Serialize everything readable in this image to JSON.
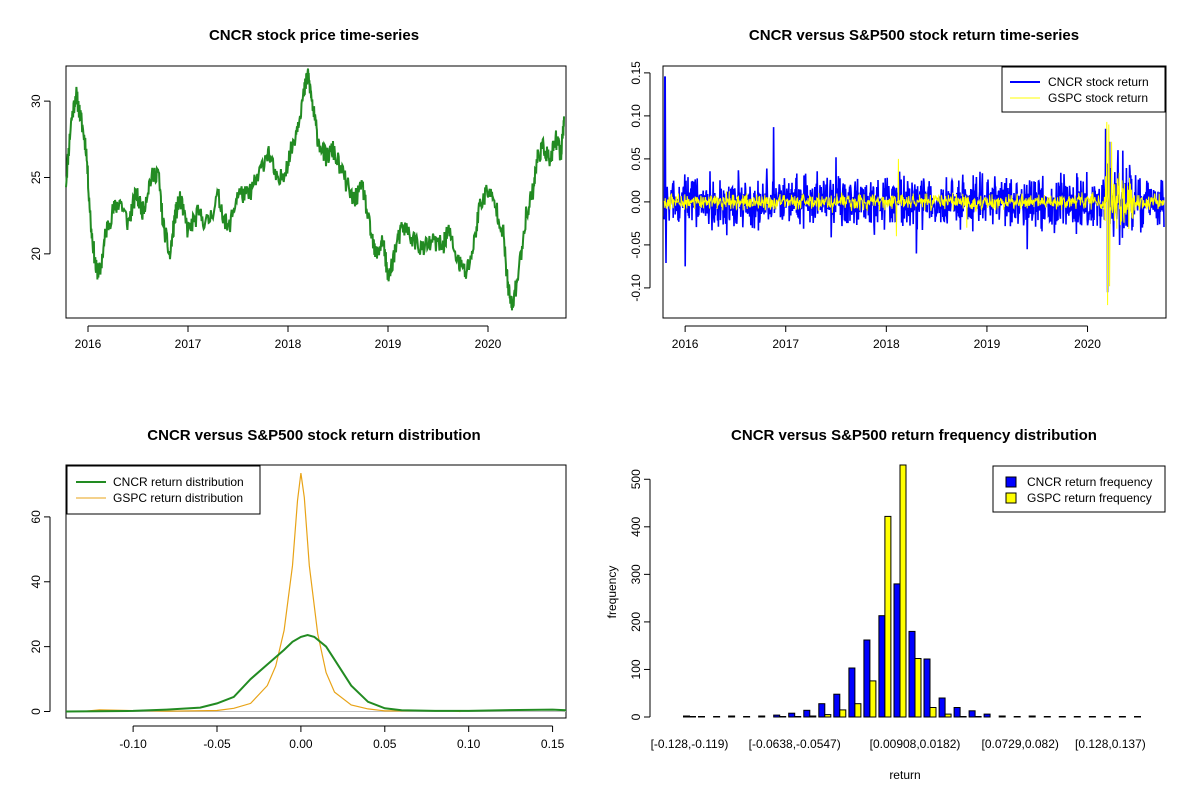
{
  "colors": {
    "green": "#228b22",
    "blue": "#0000ff",
    "yellow": "#ffff00",
    "orange": "#e8a317",
    "gray": "#bebebe"
  },
  "chart_data": [
    {
      "id": "price",
      "type": "line",
      "title": "CNCR stock price time-series",
      "xlabel": "",
      "ylabel": "",
      "xlim": [
        2015.78,
        2020.78
      ],
      "ylim": [
        15.8,
        32.3
      ],
      "xticks": [
        2016,
        2017,
        2018,
        2019,
        2020
      ],
      "xtick_labels": [
        "2016",
        "2017",
        "2018",
        "2019",
        "2020"
      ],
      "yticks": [
        20,
        25,
        30
      ],
      "ytick_labels": [
        "20",
        "25",
        "30"
      ],
      "series": [
        {
          "name": "CNCR stock price",
          "color": "#228b22",
          "x": [
            2015.78,
            2015.83,
            2015.88,
            2015.93,
            2015.98,
            2016.03,
            2016.08,
            2016.12,
            2016.18,
            2016.25,
            2016.32,
            2016.4,
            2016.48,
            2016.55,
            2016.62,
            2016.7,
            2016.75,
            2016.82,
            2016.87,
            2016.92,
            2017.0,
            2017.1,
            2017.2,
            2017.3,
            2017.4,
            2017.5,
            2017.6,
            2017.7,
            2017.8,
            2017.9,
            2018.0,
            2018.08,
            2018.15,
            2018.2,
            2018.25,
            2018.3,
            2018.38,
            2018.45,
            2018.55,
            2018.65,
            2018.75,
            2018.82,
            2018.88,
            2018.95,
            2019.0,
            2019.08,
            2019.15,
            2019.25,
            2019.35,
            2019.45,
            2019.55,
            2019.6,
            2019.7,
            2019.78,
            2019.85,
            2019.92,
            2020.0,
            2020.08,
            2020.15,
            2020.2,
            2020.24,
            2020.3,
            2020.38,
            2020.45,
            2020.5,
            2020.56,
            2020.62,
            2020.68,
            2020.73,
            2020.76
          ],
          "y": [
            24.7,
            28.6,
            30.5,
            28.8,
            27.0,
            21.8,
            19.0,
            18.8,
            21.5,
            22.8,
            23.5,
            22.0,
            23.9,
            22.8,
            24.8,
            25.5,
            22.0,
            19.8,
            22.5,
            23.6,
            21.5,
            22.6,
            22.0,
            23.8,
            21.5,
            24.0,
            23.8,
            25.0,
            26.8,
            24.5,
            26.0,
            28.0,
            30.2,
            31.8,
            29.5,
            27.5,
            26.3,
            26.8,
            25.2,
            23.5,
            24.3,
            21.6,
            19.8,
            21.0,
            18.3,
            20.5,
            21.8,
            21.0,
            20.3,
            20.8,
            20.5,
            21.6,
            19.5,
            18.7,
            20.3,
            23.3,
            24.2,
            23.0,
            21.5,
            17.8,
            16.5,
            18.5,
            22.5,
            24.2,
            26.5,
            27.0,
            26.0,
            27.5,
            26.5,
            29.0
          ]
        }
      ]
    },
    {
      "id": "returns",
      "type": "line",
      "title": "CNCR versus S&P500 stock return time-series",
      "xlabel": "",
      "ylabel": "",
      "xlim": [
        2015.78,
        2020.78
      ],
      "ylim": [
        -0.135,
        0.158
      ],
      "xticks": [
        2016,
        2017,
        2018,
        2019,
        2020
      ],
      "xtick_labels": [
        "2016",
        "2017",
        "2018",
        "2019",
        "2020"
      ],
      "yticks": [
        -0.1,
        -0.05,
        0.0,
        0.05,
        0.1,
        0.15
      ],
      "ytick_labels": [
        "-0.10",
        "-0.05",
        "0.00",
        "0.05",
        "0.10",
        "0.15"
      ],
      "legend_position": "top-right",
      "legend": [
        "CNCR stock return",
        "GSPC stock return"
      ],
      "series": [
        {
          "name": "CNCR stock return",
          "color": "#0000ff",
          "amplitude": 0.022,
          "spikes": [
            [
              2015.8,
              0.145
            ],
            [
              2015.81,
              -0.071
            ],
            [
              2016.0,
              -0.075
            ],
            [
              2016.88,
              0.087
            ],
            [
              2017.5,
              0.052
            ],
            [
              2018.3,
              -0.06
            ],
            [
              2019.4,
              -0.055
            ],
            [
              2020.18,
              0.085
            ],
            [
              2020.2,
              -0.105
            ],
            [
              2020.22,
              0.07
            ]
          ]
        },
        {
          "name": "GSPC stock return",
          "color": "#ffff00",
          "amplitude": 0.007,
          "spikes": [
            [
              2018.1,
              -0.04
            ],
            [
              2018.12,
              0.05
            ],
            [
              2018.8,
              -0.03
            ],
            [
              2020.19,
              0.093
            ],
            [
              2020.2,
              -0.12
            ],
            [
              2020.21,
              0.09
            ],
            [
              2020.22,
              -0.098
            ],
            [
              2020.24,
              0.07
            ]
          ]
        }
      ]
    },
    {
      "id": "density",
      "type": "line",
      "title": "CNCR versus S&P500 stock return distribution",
      "xlabel": "",
      "ylabel": "",
      "xlim": [
        -0.14,
        0.158
      ],
      "ylim": [
        -2,
        76
      ],
      "xticks": [
        -0.1,
        -0.05,
        0.0,
        0.05,
        0.1,
        0.15
      ],
      "xtick_labels": [
        "-0.10",
        "-0.05",
        "0.00",
        "0.05",
        "0.10",
        "0.15"
      ],
      "yticks": [
        0,
        20,
        40,
        60
      ],
      "ytick_labels": [
        "0",
        "20",
        "40",
        "60"
      ],
      "legend_position": "top-left",
      "legend": [
        "CNCR return distribution",
        "GSPC return distribution"
      ],
      "series": [
        {
          "name": "CNCR return distribution",
          "color": "#228b22",
          "x": [
            -0.14,
            -0.1,
            -0.08,
            -0.06,
            -0.05,
            -0.04,
            -0.03,
            -0.02,
            -0.01,
            -0.005,
            0.0,
            0.004,
            0.008,
            0.015,
            0.02,
            0.03,
            0.04,
            0.05,
            0.06,
            0.08,
            0.1,
            0.12,
            0.15,
            0.158
          ],
          "y": [
            0.0,
            0.2,
            0.6,
            1.2,
            2.5,
            4.5,
            10.0,
            14.5,
            19.0,
            21.5,
            23.0,
            23.6,
            23.0,
            20.0,
            16.0,
            8.0,
            3.0,
            1.0,
            0.4,
            0.2,
            0.2,
            0.4,
            0.6,
            0.4
          ]
        },
        {
          "name": "GSPC return distribution",
          "color": "#e8a317",
          "x": [
            -0.13,
            -0.12,
            -0.08,
            -0.05,
            -0.04,
            -0.03,
            -0.02,
            -0.015,
            -0.01,
            -0.005,
            -0.002,
            0.0,
            0.002,
            0.005,
            0.01,
            0.015,
            0.02,
            0.03,
            0.04,
            0.05,
            0.09,
            0.095
          ],
          "y": [
            0.0,
            0.5,
            0.1,
            0.3,
            1.0,
            2.5,
            8.0,
            14.0,
            25.0,
            45.0,
            65.0,
            73.5,
            66.0,
            45.0,
            24.0,
            12.0,
            6.0,
            2.0,
            0.8,
            0.2,
            0.2,
            0.0
          ]
        }
      ]
    },
    {
      "id": "histogram",
      "type": "bar",
      "title": "CNCR versus S&P500 return frequency distribution",
      "xlabel": "return",
      "ylabel": "frequency",
      "ylim": [
        0,
        530
      ],
      "yticks": [
        0,
        100,
        200,
        300,
        400,
        500
      ],
      "ytick_labels": [
        "0",
        "100",
        "200",
        "300",
        "400",
        "500"
      ],
      "xtick_labels": [
        "[-0.128,-0.119)",
        "[-0.0638,-0.0547)",
        "[0.00908,0.0182)",
        "[0.0729,0.082)",
        "[0.128,0.137)"
      ],
      "xtick_indices": [
        0,
        7,
        15,
        22,
        28
      ],
      "legend_position": "top-right",
      "legend": [
        "CNCR return frequency",
        "GSPC return frequency"
      ],
      "series": [
        {
          "name": "CNCR return frequency",
          "color": "#0000ff",
          "values": [
            2,
            1,
            1,
            2,
            1,
            2,
            4,
            8,
            14,
            28,
            48,
            103,
            162,
            213,
            280,
            180,
            122,
            40,
            20,
            13,
            6,
            2,
            1,
            2,
            1,
            1,
            1,
            1,
            1,
            1,
            1
          ]
        },
        {
          "name": "GSPC return frequency",
          "color": "#ffff00",
          "values": [
            1,
            0,
            0,
            0,
            0,
            0,
            1,
            1,
            2,
            5,
            15,
            28,
            76,
            422,
            545,
            123,
            20,
            6,
            1,
            1,
            0,
            0,
            0,
            0,
            0,
            0,
            0,
            0,
            0,
            0,
            0
          ]
        }
      ]
    }
  ]
}
